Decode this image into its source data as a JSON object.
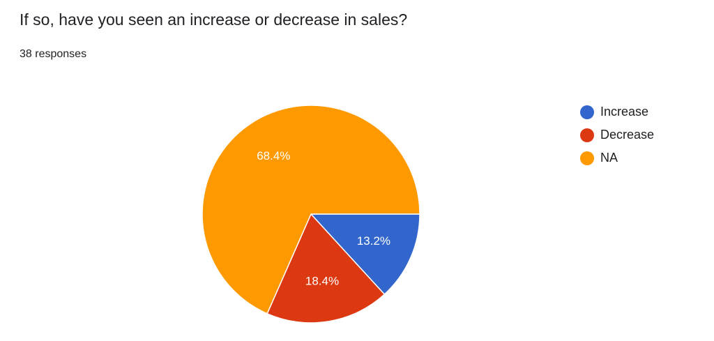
{
  "chart_data": {
    "type": "pie",
    "title": "If so, have you seen an increase or decrease in sales?",
    "subtitle": "38 responses",
    "categories": [
      "Increase",
      "Decrease",
      "NA"
    ],
    "values": [
      13.2,
      18.4,
      68.4
    ],
    "value_labels": [
      "13.2%",
      "18.4%",
      "68.4%"
    ],
    "colors": [
      "#3366cc",
      "#dc3912",
      "#ff9900"
    ],
    "legend": "right"
  }
}
